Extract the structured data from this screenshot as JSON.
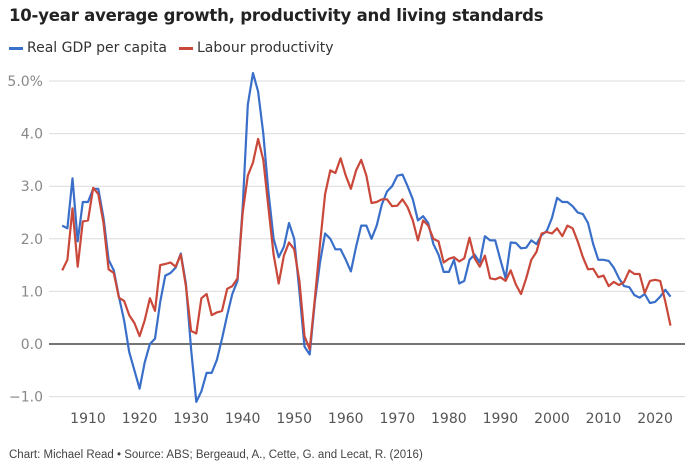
{
  "chart_data": {
    "type": "line",
    "title": "10-year average growth, productivity and living standards",
    "source": "Chart: Michael Read • Source: ABS; Bergeaud, A., Cette, G. and Lecat, R. (2016)",
    "xlim": [
      1905,
      2023
    ],
    "ylim": [
      -1.0,
      5.0
    ],
    "yticks": [
      -1,
      0,
      1,
      2,
      3,
      4,
      5
    ],
    "ytick_labels": [
      "−1.0",
      "0.0",
      "1.0",
      "2.0",
      "3.0",
      "4.0",
      "5.0%"
    ],
    "xticks": [
      1910,
      1920,
      1930,
      1940,
      1950,
      1960,
      1970,
      1980,
      1990,
      2000,
      2010,
      2020
    ],
    "xtick_labels": [
      "1910",
      "1920",
      "1930",
      "1940",
      "1950",
      "1960",
      "1970",
      "1980",
      "1990",
      "2000",
      "2010",
      "2020"
    ],
    "grid": true,
    "legend_placement": "top-left",
    "x_start": 1905,
    "series": [
      {
        "name": "Real GDP per capita",
        "color": "#3a6fc9",
        "values": [
          2.25,
          2.2,
          3.15,
          1.95,
          2.7,
          2.7,
          2.95,
          2.95,
          2.4,
          1.6,
          1.4,
          0.9,
          0.45,
          -0.15,
          -0.5,
          -0.85,
          -0.35,
          0.0,
          0.1,
          0.8,
          1.3,
          1.35,
          1.45,
          1.72,
          1.15,
          -0.1,
          -1.1,
          -0.9,
          -0.55,
          -0.55,
          -0.3,
          0.1,
          0.55,
          0.95,
          1.2,
          2.6,
          4.55,
          5.15,
          4.8,
          4.0,
          2.9,
          2.0,
          1.65,
          1.85,
          2.3,
          2.0,
          1.0,
          -0.05,
          -0.2,
          0.8,
          1.55,
          2.1,
          2.0,
          1.8,
          1.8,
          1.6,
          1.38,
          1.85,
          2.25,
          2.25,
          2.0,
          2.25,
          2.65,
          2.9,
          3.0,
          3.2,
          3.22,
          3.0,
          2.75,
          2.35,
          2.43,
          2.3,
          1.9,
          1.7,
          1.37,
          1.37,
          1.6,
          1.15,
          1.2,
          1.6,
          1.7,
          1.55,
          2.05,
          1.97,
          1.97,
          1.6,
          1.25,
          1.93,
          1.92,
          1.82,
          1.83,
          1.97,
          1.9,
          2.07,
          2.15,
          2.4,
          2.78,
          2.7,
          2.7,
          2.62,
          2.5,
          2.47,
          2.3,
          1.9,
          1.6,
          1.6,
          1.58,
          1.45,
          1.25,
          1.1,
          1.08,
          0.93,
          0.88,
          0.95,
          0.78,
          0.8,
          0.9,
          1.03,
          0.9
        ]
      },
      {
        "name": "Labour productivity",
        "color": "#c9483a",
        "values": [
          1.4,
          1.6,
          2.58,
          1.47,
          2.33,
          2.35,
          2.97,
          2.85,
          2.3,
          1.42,
          1.35,
          0.88,
          0.82,
          0.55,
          0.4,
          0.15,
          0.45,
          0.87,
          0.63,
          1.5,
          1.52,
          1.55,
          1.47,
          1.7,
          1.1,
          0.25,
          0.2,
          0.87,
          0.95,
          0.55,
          0.6,
          0.63,
          1.05,
          1.1,
          1.25,
          2.5,
          3.2,
          3.45,
          3.9,
          3.5,
          2.6,
          1.7,
          1.15,
          1.68,
          1.93,
          1.8,
          1.2,
          0.15,
          -0.1,
          0.85,
          1.9,
          2.85,
          3.3,
          3.25,
          3.53,
          3.2,
          2.95,
          3.3,
          3.5,
          3.2,
          2.68,
          2.7,
          2.75,
          2.75,
          2.62,
          2.63,
          2.75,
          2.6,
          2.35,
          1.97,
          2.35,
          2.25,
          2.0,
          1.95,
          1.55,
          1.62,
          1.65,
          1.57,
          1.63,
          2.02,
          1.63,
          1.47,
          1.68,
          1.25,
          1.23,
          1.27,
          1.2,
          1.4,
          1.13,
          0.95,
          1.25,
          1.6,
          1.75,
          2.1,
          2.13,
          2.1,
          2.2,
          2.05,
          2.25,
          2.2,
          1.95,
          1.65,
          1.42,
          1.43,
          1.27,
          1.3,
          1.1,
          1.18,
          1.12,
          1.18,
          1.4,
          1.33,
          1.33,
          0.97,
          1.2,
          1.22,
          1.2,
          0.8,
          0.35
        ]
      }
    ]
  }
}
